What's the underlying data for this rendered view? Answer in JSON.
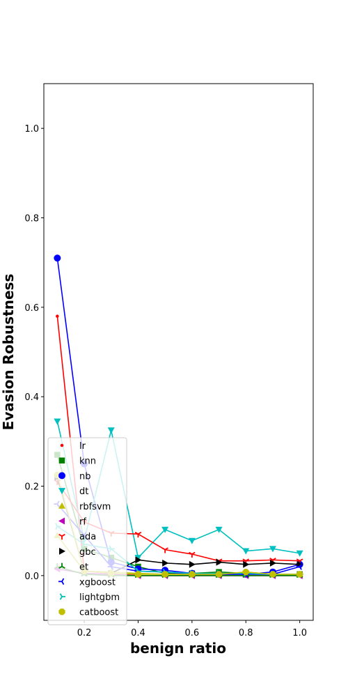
{
  "chart_data": {
    "type": "line",
    "xlabel": "benign ratio",
    "ylabel": "Evasion Robustness",
    "xlim": [
      0.05,
      1.05
    ],
    "ylim": [
      -0.1,
      1.1
    ],
    "xticks": [
      0.2,
      0.4,
      0.6,
      0.8,
      1.0
    ],
    "xtick_labels": [
      "0.2",
      "0.4",
      "0.6",
      "0.8",
      "1.0"
    ],
    "yticks": [
      0.0,
      0.2,
      0.4,
      0.6,
      0.8,
      1.0
    ],
    "ytick_labels": [
      "0.0",
      "0.2",
      "0.4",
      "0.6",
      "0.8",
      "1.0"
    ],
    "legend_position": "lower-left",
    "x": [
      0.1,
      0.2,
      0.3,
      0.4,
      0.5,
      0.6,
      0.7,
      0.8,
      0.9,
      1.0
    ],
    "series": [
      {
        "name": "lr",
        "color": "#ff0000",
        "marker": "point",
        "values": [
          0.58,
          0.01,
          0.005,
          0.0,
          0.0,
          0.0,
          0.0,
          0.0,
          0.0,
          0.0
        ]
      },
      {
        "name": "knn",
        "color": "#008000",
        "marker": "square",
        "values": [
          0.27,
          0.06,
          0.04,
          0.02,
          0.005,
          0.005,
          0.008,
          0.005,
          0.003,
          0.003
        ]
      },
      {
        "name": "nb",
        "color": "#0000ff",
        "marker": "circle",
        "values": [
          0.71,
          0.25,
          0.03,
          0.015,
          0.012,
          0.005,
          0.003,
          0.003,
          0.008,
          0.025
        ]
      },
      {
        "name": "dt",
        "color": "#00bfbf",
        "marker": "triangle-down",
        "values": [
          0.345,
          0.08,
          0.325,
          0.04,
          0.103,
          0.078,
          0.103,
          0.055,
          0.06,
          0.05
        ]
      },
      {
        "name": "rbfsvm",
        "color": "#bfbf00",
        "marker": "triangle-up",
        "values": [
          0.09,
          0.01,
          0.008,
          0.005,
          0.003,
          0.003,
          0.003,
          0.003,
          0.003,
          0.003
        ]
      },
      {
        "name": "rf",
        "color": "#bf00bf",
        "marker": "triangle-left",
        "values": [
          0.015,
          0.005,
          0.003,
          0.0,
          0.0,
          0.0,
          0.0,
          0.0,
          0.0,
          0.0
        ]
      },
      {
        "name": "ada",
        "color": "#ff0000",
        "marker": "tri-down",
        "values": [
          0.21,
          0.12,
          0.095,
          0.093,
          0.058,
          0.048,
          0.033,
          0.033,
          0.035,
          0.033
        ]
      },
      {
        "name": "gbc",
        "color": "#000000",
        "marker": "triangle-right",
        "values": [
          0.22,
          0.01,
          0.005,
          0.035,
          0.028,
          0.025,
          0.03,
          0.025,
          0.028,
          0.025
        ]
      },
      {
        "name": "et",
        "color": "#008000",
        "marker": "tri-up",
        "values": [
          0.02,
          0.003,
          0.0,
          0.0,
          0.0,
          0.0,
          0.0,
          0.0,
          0.0,
          0.0
        ]
      },
      {
        "name": "xgboost",
        "color": "#0000ff",
        "marker": "tri-left",
        "values": [
          0.16,
          0.09,
          0.02,
          0.01,
          0.008,
          0.003,
          0.003,
          0.003,
          0.003,
          0.02
        ]
      },
      {
        "name": "lightgbm",
        "color": "#00bfbf",
        "marker": "tri-right",
        "values": [
          0.11,
          0.07,
          0.06,
          0.01,
          0.008,
          0.005,
          0.005,
          0.005,
          0.003,
          0.003
        ]
      },
      {
        "name": "catboost",
        "color": "#bfbf00",
        "marker": "octagon",
        "values": [
          0.225,
          0.01,
          0.005,
          0.003,
          0.003,
          0.003,
          0.003,
          0.008,
          0.003,
          0.003
        ]
      }
    ]
  }
}
